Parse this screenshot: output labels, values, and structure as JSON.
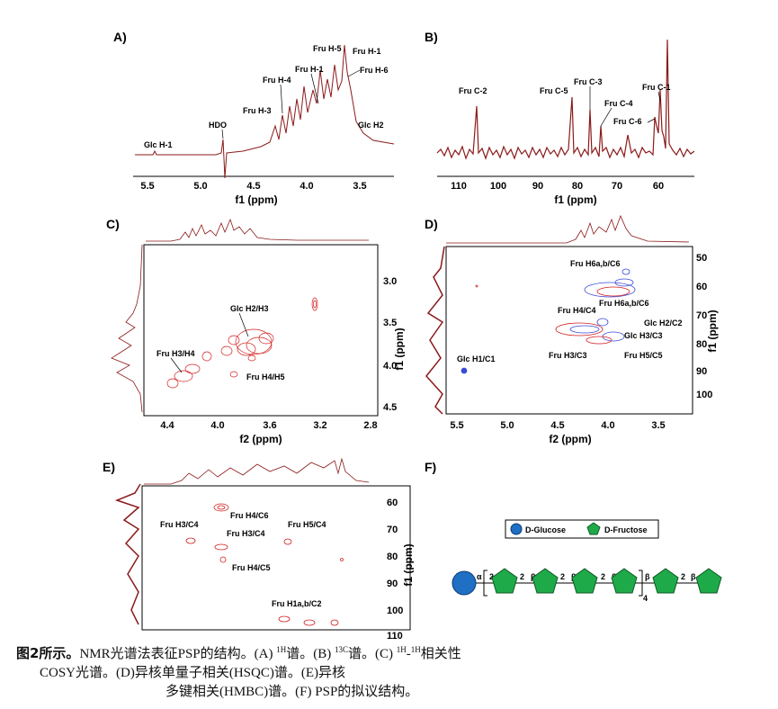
{
  "panels": {
    "A": {
      "label": "A)",
      "xlabel": "f1 (ppm)",
      "ticks": [
        "5.5",
        "5.0",
        "4.5",
        "4.0",
        "3.5"
      ],
      "annotations": [
        "Glc H-1",
        "HDO",
        "Fru H-3",
        "Fru H-4",
        "Fru H-1",
        "Fru H-5",
        "Fru H-1",
        "Fru H-6",
        "Glc H2"
      ]
    },
    "B": {
      "label": "B)",
      "xlabel": "f1 (ppm)",
      "ticks": [
        "110",
        "100",
        "90",
        "80",
        "70",
        "60"
      ],
      "annotations": [
        "Fru C-2",
        "Fru C-5",
        "Fru C-3",
        "Fru C-4",
        "Fru C-1",
        "Fru C-6"
      ]
    },
    "C": {
      "label": "C)",
      "xlabel": "f2 (ppm)",
      "ylabel": "f1 (ppm)",
      "xticks": [
        "4.4",
        "4.0",
        "3.6",
        "3.2",
        "2.8"
      ],
      "yticks": [
        "3.0",
        "3.5",
        "4.0",
        "4.5"
      ],
      "annotations": [
        "Glc H2/H3",
        "Fru H3/H4",
        "Fru H4/H5"
      ]
    },
    "D": {
      "label": "D)",
      "xlabel": "f2 (ppm)",
      "ylabel": "f1 (ppm)",
      "xticks": [
        "5.5",
        "5.0",
        "4.5",
        "4.0",
        "3.5"
      ],
      "yticks": [
        "50",
        "60",
        "70",
        "80",
        "90",
        "100"
      ],
      "annotations": [
        "Fru H6a,b/C6",
        "Fru H6a,b/C6",
        "Fru H4/C4",
        "Glc H2/C2",
        "Glc H3/C3",
        "Fru H3/C3",
        "Fru H5/C5",
        "Glc H1/C1"
      ]
    },
    "E": {
      "label": "E)",
      "ylabel": "f1 (ppm)",
      "yticks": [
        "60",
        "70",
        "80",
        "90",
        "100",
        "110"
      ],
      "annotations": [
        "Fru H4/C6",
        "Fru H3/C4",
        "Fru H3/C4",
        "Fru H5/C4",
        "Fru H4/C5",
        "Fru H1a,b/C2"
      ]
    },
    "F": {
      "label": "F)",
      "legend": [
        "D-Glucose",
        "D-Fructose"
      ],
      "linkage_alpha": "α",
      "linkage_2": "2",
      "linkage_beta": "β",
      "repeat": "4"
    }
  },
  "caption": {
    "fig": "图2所示。",
    "line1a": "NMR光谱法表征PSP的结构。(A)",
    "sup1": "1H",
    "line1b": "谱。(B)",
    "sup2": "13C",
    "line1c": "谱。(C)",
    "sup3": "1H",
    "line1d": "-",
    "sup4": "1H",
    "line1e": "相关性",
    "line2": "COSY光谱。(D)异核单量子相关(HSQC)谱。(E)异核",
    "line3": "多键相关(HMBC)谱。(F) PSP的拟议结构。"
  },
  "colors": {
    "spectrum": "#8b1a1a",
    "glucose": "#1f6fc5",
    "fructose": "#1faa4a",
    "hsqc_blue": "#3a4bd8"
  }
}
